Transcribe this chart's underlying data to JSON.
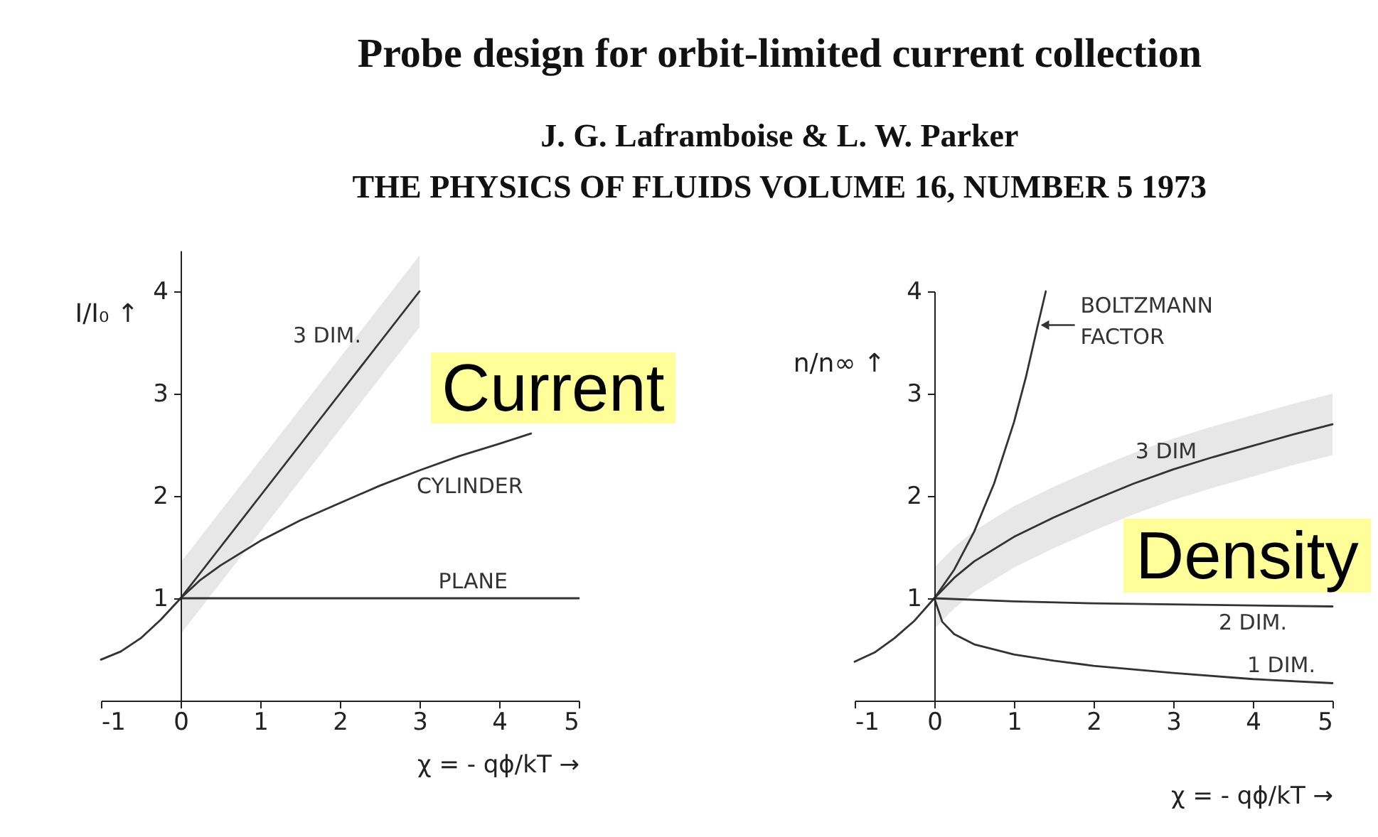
{
  "chart_data": [
    {
      "type": "line",
      "title": "Probe design for orbit-limited current collection",
      "subtitle": "J. G. Laframboise & L. W. Parker",
      "annotations": [
        "THE PHYSICS OF FLUIDS VOLUME 16, NUMBER 5 1973",
        "Current"
      ],
      "xlabel": "χ = - qϕ/kT →",
      "ylabel": "I/I₀ ↑",
      "xlim": [
        -1,
        5
      ],
      "ylim": [
        0,
        4.4
      ],
      "xticks": [
        -1,
        0,
        1,
        2,
        3,
        4,
        5
      ],
      "yticks": [
        1,
        2,
        3,
        4
      ],
      "series": [
        {
          "name": "3 DIM.",
          "color": "#333333",
          "x": [
            0,
            0.5,
            1,
            1.5,
            2,
            2.5,
            3
          ],
          "values": [
            1,
            1.5,
            2,
            2.5,
            3,
            3.5,
            4
          ],
          "lower": [
            0.65,
            1.15,
            1.65,
            2.15,
            2.65,
            3.15,
            3.65
          ],
          "upper": [
            1.35,
            1.85,
            2.35,
            2.85,
            3.35,
            3.85,
            4.35
          ]
        },
        {
          "name": "CYLINDER",
          "color": "#333333",
          "x": [
            -1,
            -0.75,
            -0.5,
            -0.25,
            0,
            0.25,
            0.5,
            1,
            1.5,
            2,
            2.5,
            3,
            3.5,
            4,
            4.4
          ],
          "values": [
            0.4,
            0.48,
            0.61,
            0.79,
            1,
            1.18,
            1.32,
            1.56,
            1.76,
            1.93,
            2.1,
            2.25,
            2.39,
            2.51,
            2.61
          ]
        },
        {
          "name": "PLANE",
          "color": "#333333",
          "x": [
            0,
            5
          ],
          "values": [
            1,
            1
          ]
        }
      ]
    },
    {
      "type": "line",
      "annotations": [
        "Density"
      ],
      "xlabel": "χ = - qϕ/kT →",
      "ylabel": "n/n∞ ↑",
      "xlim": [
        -1,
        5
      ],
      "ylim": [
        0,
        4
      ],
      "xticks": [
        -1,
        0,
        1,
        2,
        3,
        4,
        5
      ],
      "yticks": [
        1,
        2,
        3,
        4
      ],
      "series": [
        {
          "name": "BOLTZMANN FACTOR",
          "color": "#333333",
          "x": [
            -1,
            -0.75,
            -0.5,
            -0.25,
            0,
            0.25,
            0.5,
            0.75,
            1,
            1.15,
            1.3,
            1.4
          ],
          "values": [
            0.38,
            0.47,
            0.61,
            0.78,
            1,
            1.28,
            1.65,
            2.12,
            2.72,
            3.16,
            3.67,
            4.0
          ]
        },
        {
          "name": "3 DIM",
          "color": "#333333",
          "x": [
            0,
            0.25,
            0.5,
            1,
            1.5,
            2,
            2.5,
            3,
            3.5,
            4,
            4.5,
            5
          ],
          "values": [
            1,
            1.2,
            1.36,
            1.6,
            1.79,
            1.96,
            2.12,
            2.26,
            2.38,
            2.49,
            2.6,
            2.7
          ],
          "lower": [
            0.7,
            0.9,
            1.06,
            1.3,
            1.49,
            1.66,
            1.82,
            1.96,
            2.08,
            2.19,
            2.3,
            2.4
          ],
          "upper": [
            1.3,
            1.5,
            1.66,
            1.9,
            2.09,
            2.26,
            2.42,
            2.56,
            2.68,
            2.79,
            2.9,
            3.0
          ]
        },
        {
          "name": "2 DIM.",
          "color": "#333333",
          "x": [
            0,
            1,
            2,
            3,
            4,
            5
          ],
          "values": [
            1,
            0.97,
            0.95,
            0.94,
            0.93,
            0.92
          ]
        },
        {
          "name": "1 DIM.",
          "color": "#333333",
          "x": [
            0,
            0.1,
            0.25,
            0.5,
            1,
            1.5,
            2,
            3,
            4,
            5
          ],
          "values": [
            1,
            0.77,
            0.65,
            0.55,
            0.45,
            0.39,
            0.34,
            0.27,
            0.21,
            0.17
          ]
        }
      ]
    }
  ]
}
